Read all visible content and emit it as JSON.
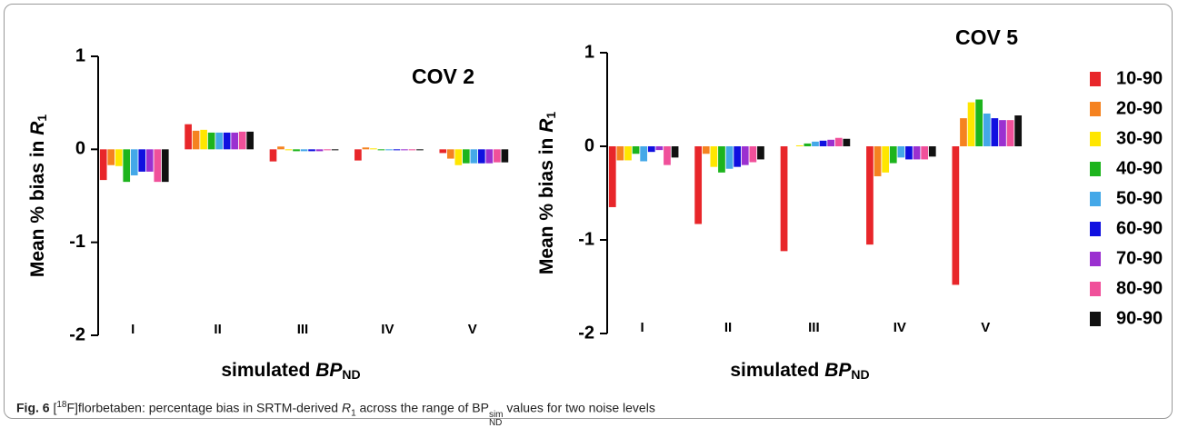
{
  "chart_data": [
    {
      "type": "bar",
      "title": "COV 2",
      "categories": [
        "I",
        "II",
        "III",
        "IV",
        "V"
      ],
      "series": [
        {
          "name": "10-90",
          "color": "#e8262a",
          "values": [
            -0.33,
            0.27,
            -0.13,
            -0.12,
            -0.04
          ]
        },
        {
          "name": "20-90",
          "color": "#f58220",
          "values": [
            -0.17,
            0.2,
            0.03,
            0.02,
            -0.1
          ]
        },
        {
          "name": "30-90",
          "color": "#ffe600",
          "values": [
            -0.18,
            0.21,
            -0.01,
            0.01,
            -0.17
          ]
        },
        {
          "name": "40-90",
          "color": "#1db41d",
          "values": [
            -0.35,
            0.18,
            -0.02,
            -0.01,
            -0.15
          ]
        },
        {
          "name": "50-90",
          "color": "#44a8e8",
          "values": [
            -0.28,
            0.18,
            -0.02,
            -0.01,
            -0.15
          ]
        },
        {
          "name": "60-90",
          "color": "#1010e0",
          "values": [
            -0.24,
            0.18,
            -0.02,
            -0.01,
            -0.15
          ]
        },
        {
          "name": "70-90",
          "color": "#9b30d0",
          "values": [
            -0.24,
            0.18,
            -0.02,
            -0.01,
            -0.15
          ]
        },
        {
          "name": "80-90",
          "color": "#f0509a",
          "values": [
            -0.35,
            0.19,
            -0.01,
            -0.01,
            -0.14
          ]
        },
        {
          "name": "90-90",
          "color": "#111111",
          "values": [
            -0.35,
            0.19,
            -0.01,
            -0.01,
            -0.14
          ]
        }
      ],
      "ylim": [
        -2,
        1
      ],
      "yticks": [
        -2,
        -1,
        0,
        1
      ],
      "ylabel": [
        "Mean % bias in ",
        "R",
        "1"
      ],
      "xlabel": [
        "simulated ",
        "BP",
        "ND"
      ]
    },
    {
      "type": "bar",
      "title": "COV 5",
      "categories": [
        "I",
        "II",
        "III",
        "IV",
        "V"
      ],
      "series": [
        {
          "name": "10-90",
          "color": "#e8262a",
          "values": [
            -0.65,
            -0.83,
            -1.12,
            -1.05,
            -1.48
          ]
        },
        {
          "name": "20-90",
          "color": "#f58220",
          "values": [
            -0.15,
            -0.08,
            0.0,
            -0.32,
            0.3
          ]
        },
        {
          "name": "30-90",
          "color": "#ffe600",
          "values": [
            -0.15,
            -0.22,
            0.01,
            -0.28,
            0.47
          ]
        },
        {
          "name": "40-90",
          "color": "#1db41d",
          "values": [
            -0.08,
            -0.28,
            0.03,
            -0.18,
            0.5
          ]
        },
        {
          "name": "50-90",
          "color": "#44a8e8",
          "values": [
            -0.16,
            -0.24,
            0.05,
            -0.12,
            0.35
          ]
        },
        {
          "name": "60-90",
          "color": "#1010e0",
          "values": [
            -0.06,
            -0.22,
            0.06,
            -0.14,
            0.3
          ]
        },
        {
          "name": "70-90",
          "color": "#9b30d0",
          "values": [
            -0.04,
            -0.2,
            0.07,
            -0.14,
            0.28
          ]
        },
        {
          "name": "80-90",
          "color": "#f0509a",
          "values": [
            -0.2,
            -0.17,
            0.09,
            -0.14,
            0.28
          ]
        },
        {
          "name": "90-90",
          "color": "#111111",
          "values": [
            -0.12,
            -0.14,
            0.08,
            -0.11,
            0.33
          ]
        }
      ],
      "ylim": [
        -2,
        1
      ],
      "yticks": [
        -2,
        -1,
        0,
        1
      ],
      "ylabel": [
        "Mean % bias in ",
        "R",
        "1"
      ],
      "xlabel": [
        "simulated ",
        "BP",
        "ND"
      ],
      "legend": "right"
    }
  ],
  "caption": [
    "Fig. 6",
    " [",
    "18",
    "F]florbetaben: percentage bias in SRTM-derived ",
    "R",
    "1",
    " across the range of ",
    "BP",
    "sim",
    "ND",
    " values for two noise levels"
  ]
}
